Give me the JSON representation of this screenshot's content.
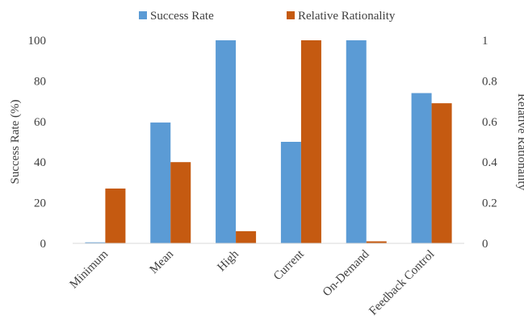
{
  "chart_data": {
    "type": "bar",
    "categories": [
      "Minimum",
      "Mean",
      "High",
      "Current",
      "On-Demand",
      "Feedback Control"
    ],
    "series": [
      {
        "name": "Success Rate",
        "axis": "left",
        "color": "#5B9BD5",
        "values": [
          0.5,
          59.5,
          100,
          50,
          100,
          74
        ]
      },
      {
        "name": "Relative Rationality",
        "axis": "right",
        "color": "#C55A11",
        "values": [
          0.27,
          0.4,
          0.06,
          1.0,
          0.01,
          0.69
        ]
      }
    ],
    "ylabel": "Success Rate (%)",
    "y2label": "Relative Rationality",
    "ylim": [
      0,
      100
    ],
    "y2lim": [
      0,
      1
    ],
    "yticks": [
      "0",
      "20",
      "40",
      "60",
      "80",
      "100"
    ],
    "y2ticks": [
      "0",
      "0.2",
      "0.4",
      "0.6",
      "0.8",
      "1"
    ],
    "legend_position": "top-center",
    "grid": false
  }
}
